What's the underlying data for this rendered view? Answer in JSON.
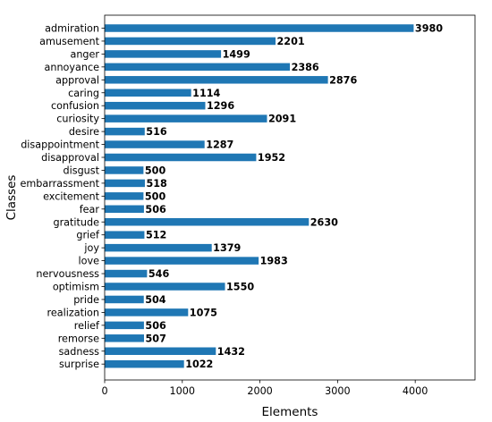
{
  "chart_data": {
    "type": "bar",
    "orientation": "horizontal",
    "title": "",
    "xlabel": "Elements",
    "ylabel": "Classes",
    "xlim": [
      0,
      4770
    ],
    "xticks": [
      0,
      1000,
      2000,
      3000,
      4000
    ],
    "xtick_labels": [
      "0",
      "1000",
      "2000",
      "3000",
      "4000"
    ],
    "grid": false,
    "legend": "none",
    "bar_color": "#1f77b4",
    "categories": [
      "admiration",
      "amusement",
      "anger",
      "annoyance",
      "approval",
      "caring",
      "confusion",
      "curiosity",
      "desire",
      "disappointment",
      "disapproval",
      "disgust",
      "embarrassment",
      "excitement",
      "fear",
      "gratitude",
      "grief",
      "joy",
      "love",
      "nervousness",
      "optimism",
      "pride",
      "realization",
      "relief",
      "remorse",
      "sadness",
      "surprise"
    ],
    "values": [
      3980,
      2201,
      1499,
      2386,
      2876,
      1114,
      1296,
      2091,
      516,
      1287,
      1952,
      500,
      518,
      500,
      506,
      2630,
      512,
      1379,
      1983,
      546,
      1550,
      504,
      1075,
      506,
      507,
      1432,
      1022
    ],
    "value_labels": [
      "3980",
      "2201",
      "1499",
      "2386",
      "2876",
      "1114",
      "1296",
      "2091",
      "516",
      "1287",
      "1952",
      "500",
      "518",
      "500",
      "506",
      "2630",
      "512",
      "1379",
      "1983",
      "546",
      "1550",
      "504",
      "1075",
      "506",
      "507",
      "1432",
      "1022"
    ]
  }
}
